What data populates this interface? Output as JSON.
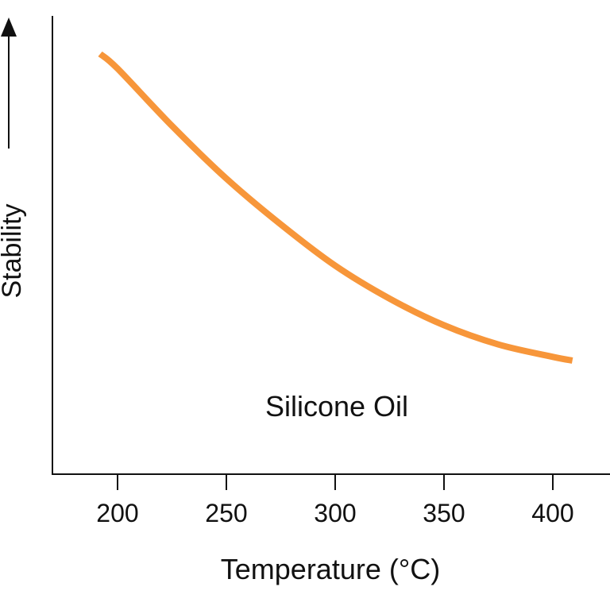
{
  "chart_data": {
    "type": "line",
    "title": "",
    "xlabel": "Temperature (°C)",
    "ylabel": "Stability",
    "xlim": [
      170,
      420
    ],
    "ylim": [
      0,
      1
    ],
    "xticks": [
      200,
      250,
      300,
      350,
      400
    ],
    "yticks": [],
    "grid": false,
    "series": [
      {
        "name": "Silicone Oil",
        "color": "#F7963A",
        "x": [
          192,
          200,
          225,
          250,
          275,
          300,
          325,
          350,
          375,
          400,
          409
        ],
        "y": [
          0.917,
          0.885,
          0.76,
          0.645,
          0.545,
          0.455,
          0.383,
          0.325,
          0.283,
          0.256,
          0.248
        ]
      }
    ],
    "annotations": [
      "Silicone Oil"
    ]
  }
}
